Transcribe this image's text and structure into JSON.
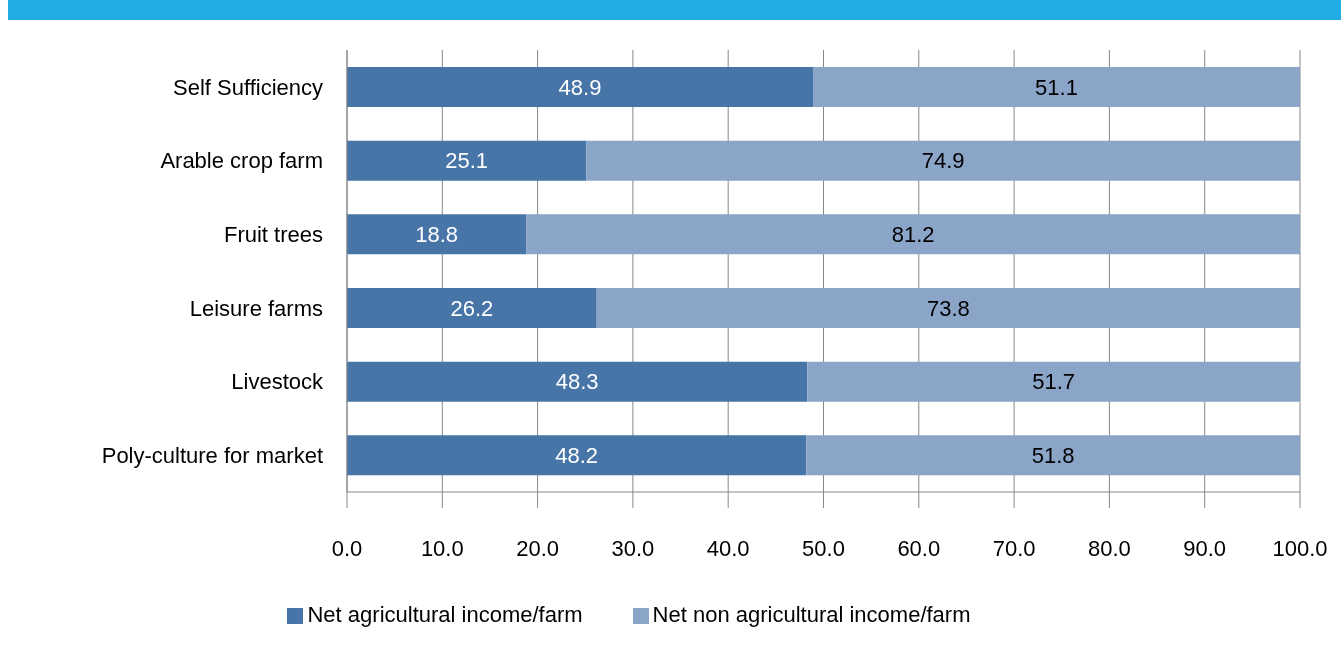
{
  "chart_data": {
    "type": "bar",
    "orientation": "horizontal",
    "stacked": true,
    "categories": [
      "Self Sufficiency",
      "Arable crop farm",
      "Fruit trees",
      "Leisure farms",
      "Livestock",
      "Poly-culture for market"
    ],
    "series": [
      {
        "name": "Net agricultural income/farm",
        "color": "#4775a8",
        "values": [
          48.9,
          25.1,
          18.8,
          26.2,
          48.3,
          48.2
        ]
      },
      {
        "name": "Net non agricultural income/farm",
        "color": "#8ba5c9",
        "values": [
          51.1,
          74.9,
          81.2,
          73.8,
          51.7,
          51.8
        ]
      }
    ],
    "xlim": [
      0,
      100
    ],
    "xticks": [
      {
        "value": 0,
        "label": "0.0"
      },
      {
        "value": 10,
        "label": "10.0"
      },
      {
        "value": 20,
        "label": "20.0"
      },
      {
        "value": 30,
        "label": "30.0"
      },
      {
        "value": 40,
        "label": "40.0"
      },
      {
        "value": 50,
        "label": "50.0"
      },
      {
        "value": 60,
        "label": "60.0"
      },
      {
        "value": 70,
        "label": "70.0"
      },
      {
        "value": 80,
        "label": "80.0"
      },
      {
        "value": 90,
        "label": "90.0"
      },
      {
        "value": 100,
        "label": "100.0"
      }
    ],
    "grid": "x",
    "legend": "bottom",
    "data_labels": true
  }
}
